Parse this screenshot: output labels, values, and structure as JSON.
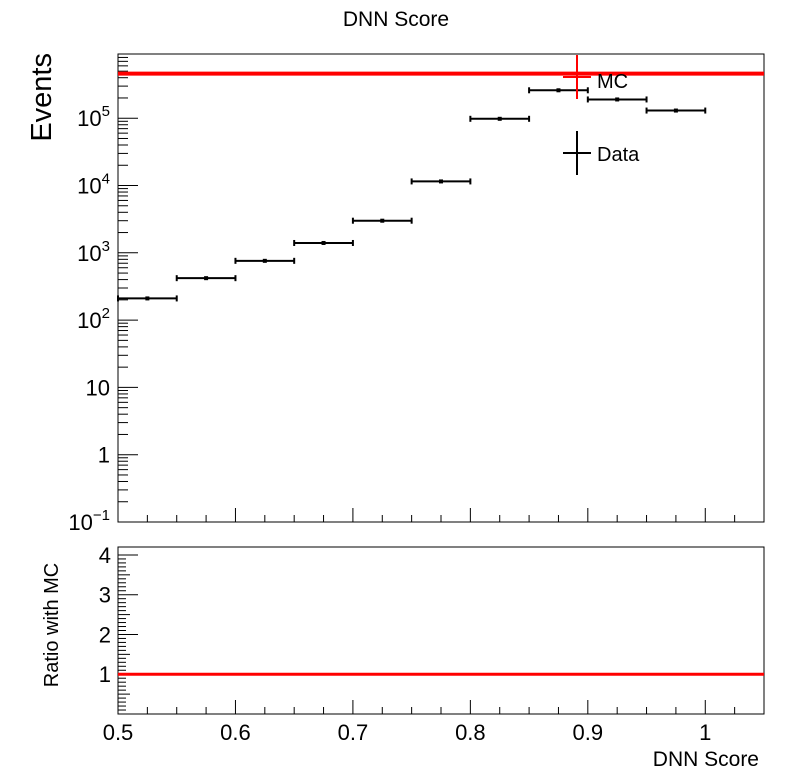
{
  "chart_data": {
    "title": "DNN Score",
    "top_panel": {
      "type": "scatter",
      "ylabel": "Events",
      "yscale": "log",
      "ylim": [
        0.1,
        900000
      ],
      "xlim": [
        0.5,
        1.05
      ],
      "ytick_labels": [
        {
          "base": "10",
          "exp": "−1",
          "value": 0.1
        },
        {
          "text": "1",
          "value": 1
        },
        {
          "text": "10",
          "value": 10
        },
        {
          "base": "10",
          "exp": "2",
          "value": 100
        },
        {
          "base": "10",
          "exp": "3",
          "value": 1000
        },
        {
          "base": "10",
          "exp": "4",
          "value": 10000
        },
        {
          "base": "10",
          "exp": "5",
          "value": 100000
        }
      ],
      "series": [
        {
          "name": "Data",
          "color": "#000000",
          "bins": [
            {
              "xlo": 0.5,
              "xhi": 0.55,
              "y": 210
            },
            {
              "xlo": 0.55,
              "xhi": 0.6,
              "y": 420
            },
            {
              "xlo": 0.6,
              "xhi": 0.65,
              "y": 760
            },
            {
              "xlo": 0.65,
              "xhi": 0.7,
              "y": 1400
            },
            {
              "xlo": 0.7,
              "xhi": 0.75,
              "y": 3000
            },
            {
              "xlo": 0.75,
              "xhi": 0.8,
              "y": 11500
            },
            {
              "xlo": 0.8,
              "xhi": 0.85,
              "y": 98000
            },
            {
              "xlo": 0.85,
              "xhi": 0.9,
              "y": 260000
            },
            {
              "xlo": 0.9,
              "xhi": 0.95,
              "y": 190000
            },
            {
              "xlo": 0.95,
              "xhi": 1.0,
              "y": 130000
            }
          ]
        },
        {
          "name": "MC",
          "color": "#ff0000",
          "constant_y": 460000
        }
      ],
      "legend": {
        "position": "top-right",
        "entries": [
          {
            "label": "MC",
            "color": "#ff0000"
          },
          {
            "label": "Data",
            "color": "#000000"
          }
        ]
      }
    },
    "bottom_panel": {
      "type": "line",
      "ylabel": "Ratio with MC",
      "xlabel": "DNN Score",
      "ylim": [
        0,
        4.2
      ],
      "xlim": [
        0.5,
        1.05
      ],
      "yticks": [
        "1",
        "2",
        "3",
        "4"
      ],
      "xticks": [
        "0.5",
        "0.6",
        "0.7",
        "0.8",
        "0.9",
        "1"
      ],
      "ratio_line": {
        "y": 1,
        "color": "#ff0000"
      }
    }
  }
}
